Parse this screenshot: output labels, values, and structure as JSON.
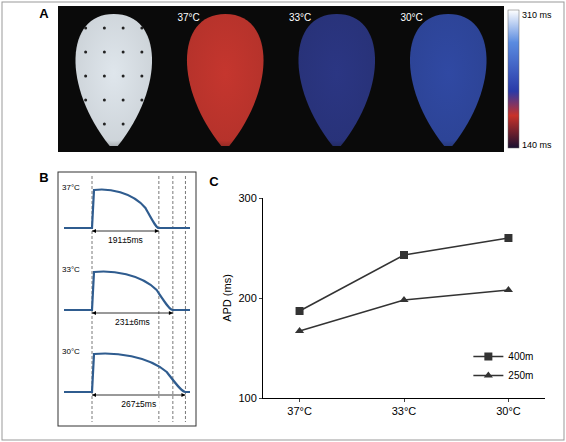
{
  "panel_a": {
    "panel_label": "A",
    "maps": [
      {
        "label": null,
        "color": "#dfe6ec"
      },
      {
        "label": "37°C",
        "color": "#c5362e"
      },
      {
        "label": "33°C",
        "color": "#2b3683"
      },
      {
        "label": "30°C",
        "color": "#3049a3"
      }
    ],
    "colorbar": {
      "range": [
        140,
        310
      ],
      "max_label": "310 ms",
      "min_label": "140 ms",
      "stops": [
        {
          "value": 310,
          "color": "#ffffff"
        },
        {
          "value": 270,
          "color": "#5a8be0"
        },
        {
          "value": 210,
          "color": "#2a3aa8"
        },
        {
          "value": 180,
          "color": "#c8312a"
        },
        {
          "value": 140,
          "color": "#1a1030"
        }
      ]
    }
  },
  "panel_b": {
    "panel_label": "B",
    "traces": [
      {
        "label": "37°C",
        "apd": 191,
        "text": "191±5ms"
      },
      {
        "label": "33°C",
        "apd": 231,
        "text": "231±6ms"
      },
      {
        "label": "30°C",
        "apd": 267,
        "text": "267±5ms"
      }
    ]
  },
  "chart_data": {
    "type": "line",
    "panel_label": "C",
    "categories": [
      "37°C",
      "33°C",
      "30°C"
    ],
    "y_label": "APD (ms)",
    "ylim": [
      100,
      300
    ],
    "yticks": [
      100,
      200,
      300
    ],
    "grid": false,
    "legend": "bottom-right",
    "series": [
      {
        "name": "400m",
        "color": "#333333",
        "marker": "square",
        "values": [
          187,
          243,
          260
        ]
      },
      {
        "name": "250m",
        "color": "#333333",
        "marker": "triangle-up",
        "values": [
          167,
          198,
          208
        ]
      }
    ]
  }
}
